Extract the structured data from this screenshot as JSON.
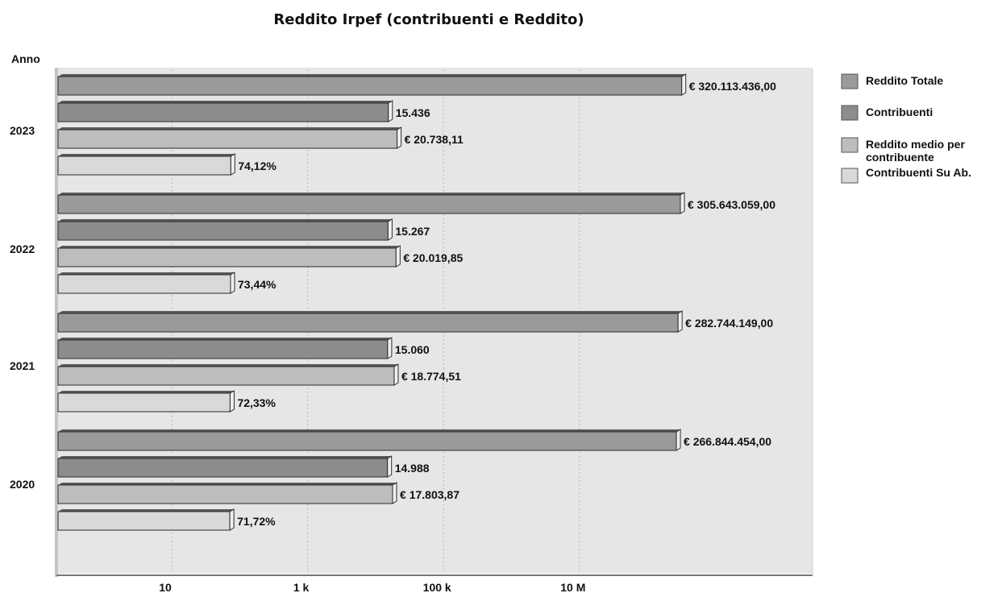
{
  "chart_data": {
    "type": "bar",
    "orientation": "horizontal",
    "scale": "log",
    "title": "Reddito Irpef (contribuenti e Reddito)",
    "ylabel": "Anno",
    "xlabel": "",
    "xlim": [
      1,
      10000000000
    ],
    "x_ticks": [
      {
        "value": 10,
        "label": "10"
      },
      {
        "value": 1000,
        "label": "1 k"
      },
      {
        "value": 100000,
        "label": "100 k"
      },
      {
        "value": 10000000,
        "label": "10 M"
      }
    ],
    "grid": true,
    "legend_position": "right",
    "categories": [
      "2023",
      "2022",
      "2021",
      "2020"
    ],
    "series": [
      {
        "name": "Reddito Totale",
        "color": "#9a9a9a",
        "values": [
          320113436.0,
          305643059.0,
          282744149.0,
          266844454.0
        ],
        "labels": [
          "€ 320.113.436,00",
          "€ 305.643.059,00",
          "€ 282.744.149,00",
          "€ 266.844.454,00"
        ]
      },
      {
        "name": "Contribuenti",
        "color": "#8c8c8c",
        "values": [
          15436,
          15267,
          15060,
          14988
        ],
        "labels": [
          "15.436",
          "15.267",
          "15.060",
          "14.988"
        ]
      },
      {
        "name": "Reddito medio per contribuente",
        "legend_lines": [
          "Reddito medio per",
          "contribuente"
        ],
        "color": "#bdbdbd",
        "values": [
          20738.11,
          20019.85,
          18774.51,
          17803.87
        ],
        "labels": [
          "€ 20.738,11",
          "€ 20.019,85",
          "€ 18.774,51",
          "€ 17.803,87"
        ]
      },
      {
        "name": "Contribuenti Su Ab.",
        "color": "#d9d9d9",
        "values": [
          74.12,
          73.44,
          72.33,
          71.72
        ],
        "labels": [
          "74,12%",
          "73,44%",
          "72,33%",
          "71,72%"
        ]
      }
    ]
  }
}
